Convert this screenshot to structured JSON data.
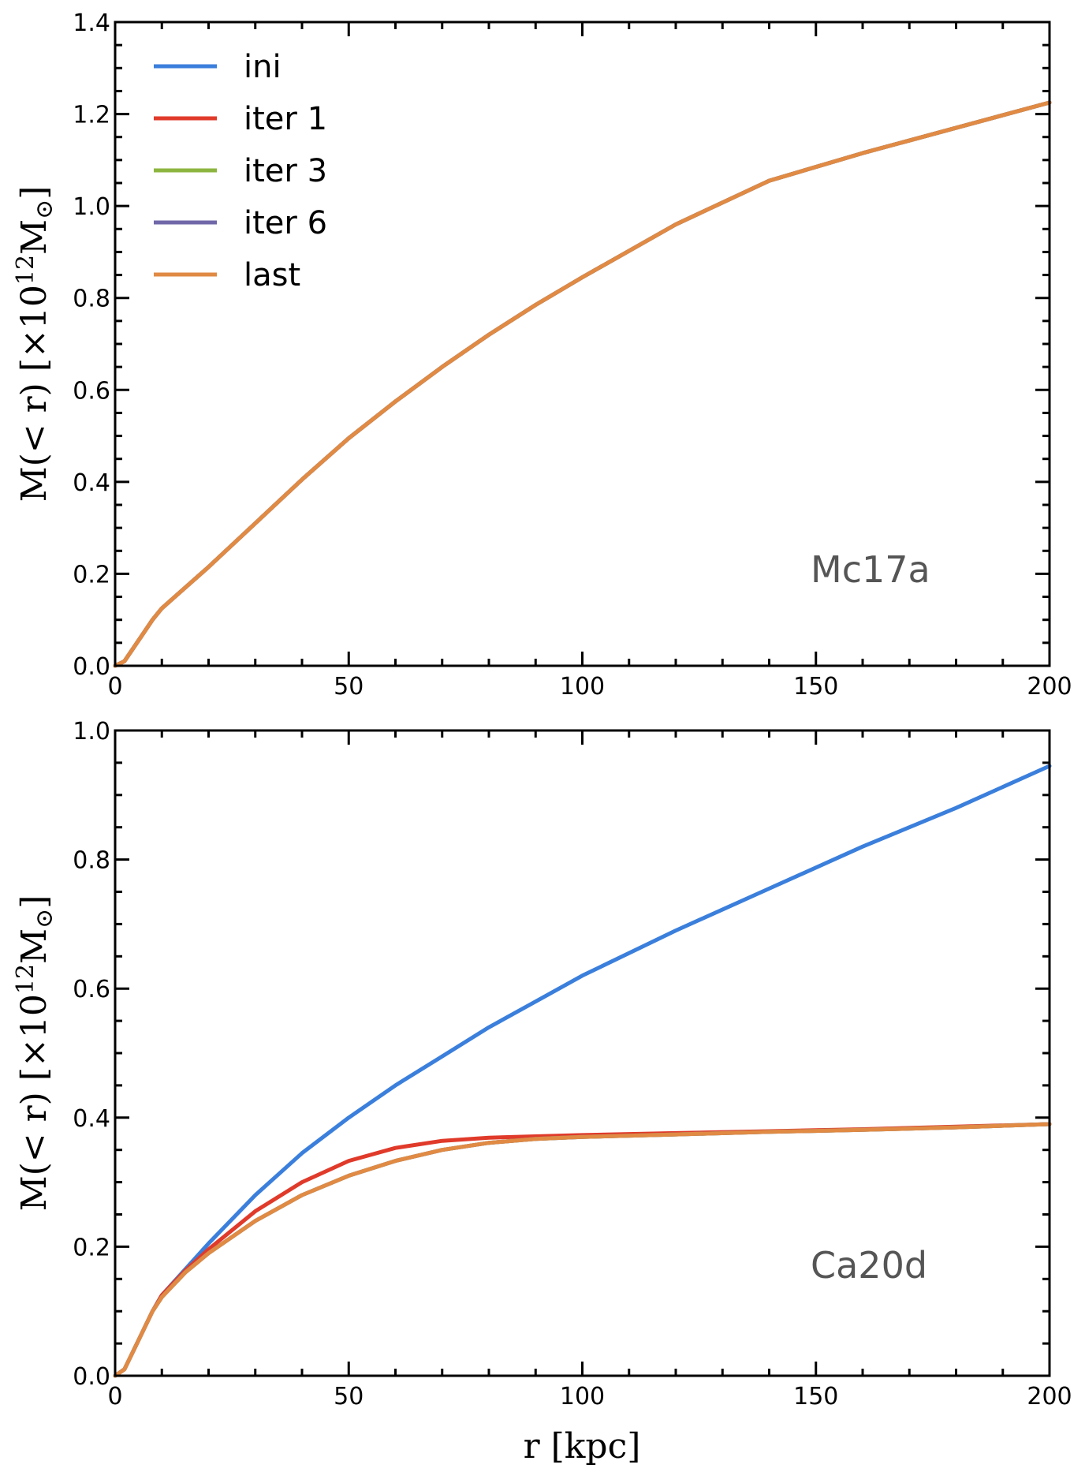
{
  "chart_data": [
    {
      "type": "line",
      "annotation": "Mc17a",
      "xlim": [
        0,
        200
      ],
      "ylim": [
        0.0,
        1.4
      ],
      "x_ticks": [
        0,
        50,
        100,
        150,
        200
      ],
      "x_tick_labels": [
        "0",
        "50",
        "100",
        "150",
        "200"
      ],
      "y_ticks": [
        0.0,
        0.2,
        0.4,
        0.6,
        0.8,
        1.0,
        1.2,
        1.4
      ],
      "y_tick_labels": [
        "0.0",
        "0.2",
        "0.4",
        "0.6",
        "0.8",
        "1.0",
        "1.2",
        "1.4"
      ],
      "ylabel": "M(< r) [×10^12 M⊙]",
      "legend": {
        "location": "top-left",
        "entries": [
          {
            "label": "ini",
            "color": "#3b7fdc"
          },
          {
            "label": "iter 1",
            "color": "#e03a2a"
          },
          {
            "label": "iter 3",
            "color": "#8cb53f"
          },
          {
            "label": "iter 6",
            "color": "#6f68a8"
          },
          {
            "label": "last",
            "color": "#e08a44"
          }
        ]
      },
      "x": [
        0,
        2,
        4,
        6,
        8,
        10,
        15,
        20,
        30,
        40,
        50,
        60,
        70,
        80,
        90,
        100,
        120,
        140,
        160,
        180,
        200
      ],
      "series": [
        {
          "name": "ini",
          "color": "#3b7fdc",
          "values": [
            0.0,
            0.01,
            0.04,
            0.07,
            0.1,
            0.125,
            0.17,
            0.215,
            0.31,
            0.405,
            0.495,
            0.575,
            0.65,
            0.72,
            0.785,
            0.845,
            0.96,
            1.055,
            1.115,
            1.17,
            1.225
          ]
        },
        {
          "name": "iter 1",
          "color": "#e03a2a",
          "values": [
            0.0,
            0.01,
            0.04,
            0.07,
            0.1,
            0.125,
            0.17,
            0.215,
            0.31,
            0.405,
            0.495,
            0.575,
            0.65,
            0.72,
            0.785,
            0.845,
            0.96,
            1.055,
            1.115,
            1.17,
            1.225
          ]
        },
        {
          "name": "iter 3",
          "color": "#8cb53f",
          "values": [
            0.0,
            0.01,
            0.04,
            0.07,
            0.1,
            0.125,
            0.17,
            0.215,
            0.31,
            0.405,
            0.495,
            0.575,
            0.65,
            0.72,
            0.785,
            0.845,
            0.96,
            1.055,
            1.115,
            1.17,
            1.225
          ]
        },
        {
          "name": "iter 6",
          "color": "#6f68a8",
          "values": [
            0.0,
            0.01,
            0.04,
            0.07,
            0.1,
            0.125,
            0.17,
            0.215,
            0.31,
            0.405,
            0.495,
            0.575,
            0.65,
            0.72,
            0.785,
            0.845,
            0.96,
            1.055,
            1.115,
            1.17,
            1.225
          ]
        },
        {
          "name": "last",
          "color": "#e08a44",
          "values": [
            0.0,
            0.01,
            0.04,
            0.07,
            0.1,
            0.125,
            0.17,
            0.215,
            0.31,
            0.405,
            0.495,
            0.575,
            0.65,
            0.72,
            0.785,
            0.845,
            0.96,
            1.055,
            1.115,
            1.17,
            1.225
          ]
        }
      ]
    },
    {
      "type": "line",
      "annotation": "Ca20d",
      "xlim": [
        0,
        200
      ],
      "ylim": [
        0.0,
        1.0
      ],
      "x_ticks": [
        0,
        50,
        100,
        150,
        200
      ],
      "x_tick_labels": [
        "0",
        "50",
        "100",
        "150",
        "200"
      ],
      "y_ticks": [
        0.0,
        0.2,
        0.4,
        0.6,
        0.8,
        1.0
      ],
      "y_tick_labels": [
        "0.0",
        "0.2",
        "0.4",
        "0.6",
        "0.8",
        "1.0"
      ],
      "xlabel": "r [kpc]",
      "ylabel": "M(< r) [×10^12 M⊙]",
      "x": [
        0,
        2,
        4,
        6,
        8,
        10,
        15,
        20,
        30,
        40,
        50,
        60,
        70,
        80,
        90,
        100,
        120,
        140,
        160,
        180,
        200
      ],
      "series": [
        {
          "name": "ini",
          "color": "#3b7fdc",
          "values": [
            0.0,
            0.01,
            0.04,
            0.07,
            0.1,
            0.125,
            0.165,
            0.205,
            0.28,
            0.345,
            0.4,
            0.45,
            0.495,
            0.54,
            0.58,
            0.62,
            0.69,
            0.755,
            0.82,
            0.88,
            0.945
          ]
        },
        {
          "name": "iter 1",
          "color": "#e03a2a",
          "values": [
            0.0,
            0.01,
            0.04,
            0.07,
            0.1,
            0.125,
            0.163,
            0.196,
            0.255,
            0.3,
            0.333,
            0.353,
            0.364,
            0.369,
            0.371,
            0.373,
            0.376,
            0.379,
            0.382,
            0.386,
            0.39
          ]
        },
        {
          "name": "iter 3",
          "color": "#8cb53f",
          "values": [
            0.0,
            0.01,
            0.04,
            0.07,
            0.1,
            0.122,
            0.16,
            0.19,
            0.24,
            0.28,
            0.31,
            0.333,
            0.35,
            0.361,
            0.367,
            0.37,
            0.374,
            0.378,
            0.381,
            0.385,
            0.39
          ]
        },
        {
          "name": "iter 6",
          "color": "#6f68a8",
          "values": [
            0.0,
            0.01,
            0.04,
            0.07,
            0.1,
            0.122,
            0.16,
            0.19,
            0.24,
            0.28,
            0.31,
            0.333,
            0.35,
            0.361,
            0.367,
            0.37,
            0.374,
            0.378,
            0.381,
            0.385,
            0.39
          ]
        },
        {
          "name": "last",
          "color": "#e08a44",
          "values": [
            0.0,
            0.01,
            0.04,
            0.07,
            0.1,
            0.122,
            0.16,
            0.19,
            0.24,
            0.28,
            0.31,
            0.333,
            0.35,
            0.361,
            0.367,
            0.37,
            0.374,
            0.378,
            0.381,
            0.385,
            0.39
          ]
        }
      ]
    }
  ],
  "axes": {
    "ylabel_parts": {
      "main": "M(< r) [×10",
      "exp": "12",
      "unit": "M",
      "sun": "⊙",
      "close": "]"
    },
    "xlabel": "r [kpc]"
  }
}
